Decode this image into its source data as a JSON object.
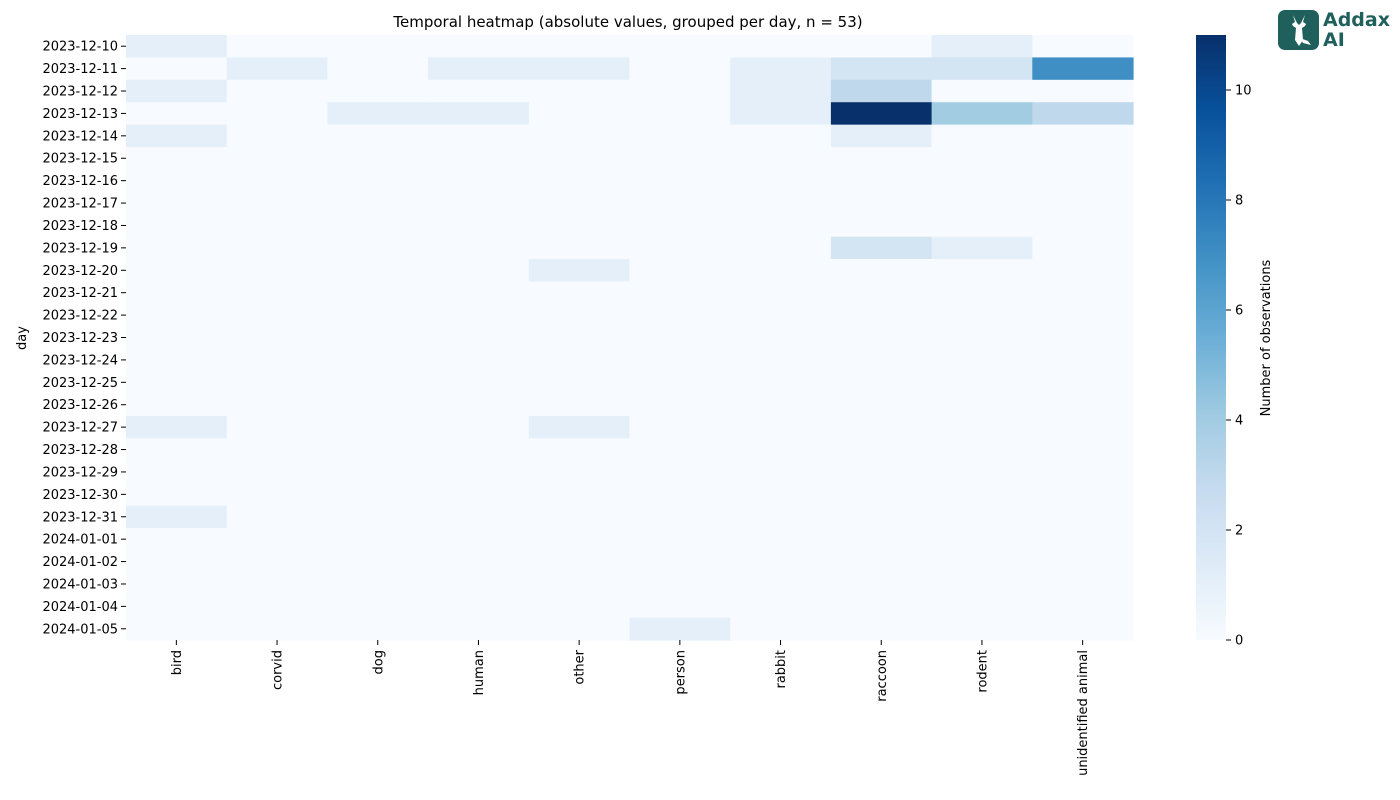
{
  "chart_data": {
    "type": "heatmap",
    "title": "Temporal heatmap (absolute values, grouped per day, n = 53)",
    "ylabel": "day",
    "xlabel": "",
    "colorbar_label": "Number of observations",
    "colormap": "Blues",
    "vmin": 0,
    "vmax": 11,
    "colorbar_ticks": [
      0,
      2,
      4,
      6,
      8,
      10
    ],
    "x_categories": [
      "bird",
      "corvid",
      "dog",
      "human",
      "other",
      "person",
      "rabbit",
      "raccoon",
      "rodent",
      "unidentified animal"
    ],
    "y_categories": [
      "2023-12-10",
      "2023-12-11",
      "2023-12-12",
      "2023-12-13",
      "2023-12-14",
      "2023-12-15",
      "2023-12-16",
      "2023-12-17",
      "2023-12-18",
      "2023-12-19",
      "2023-12-20",
      "2023-12-21",
      "2023-12-22",
      "2023-12-23",
      "2023-12-24",
      "2023-12-25",
      "2023-12-26",
      "2023-12-27",
      "2023-12-28",
      "2023-12-29",
      "2023-12-30",
      "2023-12-31",
      "2024-01-01",
      "2024-01-02",
      "2024-01-03",
      "2024-01-04",
      "2024-01-05"
    ],
    "values": [
      [
        1,
        0,
        0,
        0,
        0,
        0,
        0,
        0,
        1,
        0
      ],
      [
        0,
        1,
        0,
        1,
        1,
        0,
        1,
        2,
        2,
        7
      ],
      [
        1,
        0,
        0,
        0,
        0,
        0,
        1,
        3,
        0,
        0
      ],
      [
        0,
        0,
        1,
        1,
        0,
        0,
        1,
        11,
        4,
        3
      ],
      [
        1,
        0,
        0,
        0,
        0,
        0,
        0,
        1,
        0,
        0
      ],
      [
        0,
        0,
        0,
        0,
        0,
        0,
        0,
        0,
        0,
        0
      ],
      [
        0,
        0,
        0,
        0,
        0,
        0,
        0,
        0,
        0,
        0
      ],
      [
        0,
        0,
        0,
        0,
        0,
        0,
        0,
        0,
        0,
        0
      ],
      [
        0,
        0,
        0,
        0,
        0,
        0,
        0,
        0,
        0,
        0
      ],
      [
        0,
        0,
        0,
        0,
        0,
        0,
        0,
        2,
        1,
        0
      ],
      [
        0,
        0,
        0,
        0,
        1,
        0,
        0,
        0,
        0,
        0
      ],
      [
        0,
        0,
        0,
        0,
        0,
        0,
        0,
        0,
        0,
        0
      ],
      [
        0,
        0,
        0,
        0,
        0,
        0,
        0,
        0,
        0,
        0
      ],
      [
        0,
        0,
        0,
        0,
        0,
        0,
        0,
        0,
        0,
        0
      ],
      [
        0,
        0,
        0,
        0,
        0,
        0,
        0,
        0,
        0,
        0
      ],
      [
        0,
        0,
        0,
        0,
        0,
        0,
        0,
        0,
        0,
        0
      ],
      [
        0,
        0,
        0,
        0,
        0,
        0,
        0,
        0,
        0,
        0
      ],
      [
        1,
        0,
        0,
        0,
        1,
        0,
        0,
        0,
        0,
        0
      ],
      [
        0,
        0,
        0,
        0,
        0,
        0,
        0,
        0,
        0,
        0
      ],
      [
        0,
        0,
        0,
        0,
        0,
        0,
        0,
        0,
        0,
        0
      ],
      [
        0,
        0,
        0,
        0,
        0,
        0,
        0,
        0,
        0,
        0
      ],
      [
        1,
        0,
        0,
        0,
        0,
        0,
        0,
        0,
        0,
        0
      ],
      [
        0,
        0,
        0,
        0,
        0,
        0,
        0,
        0,
        0,
        0
      ],
      [
        0,
        0,
        0,
        0,
        0,
        0,
        0,
        0,
        0,
        0
      ],
      [
        0,
        0,
        0,
        0,
        0,
        0,
        0,
        0,
        0,
        0
      ],
      [
        0,
        0,
        0,
        0,
        0,
        0,
        0,
        0,
        0,
        0
      ],
      [
        0,
        0,
        0,
        0,
        0,
        1,
        0,
        0,
        0,
        0
      ]
    ]
  },
  "logo": {
    "line1": "Addax",
    "line2": "AI",
    "icon": "deer-head-icon",
    "color": "#1f5f5c"
  }
}
